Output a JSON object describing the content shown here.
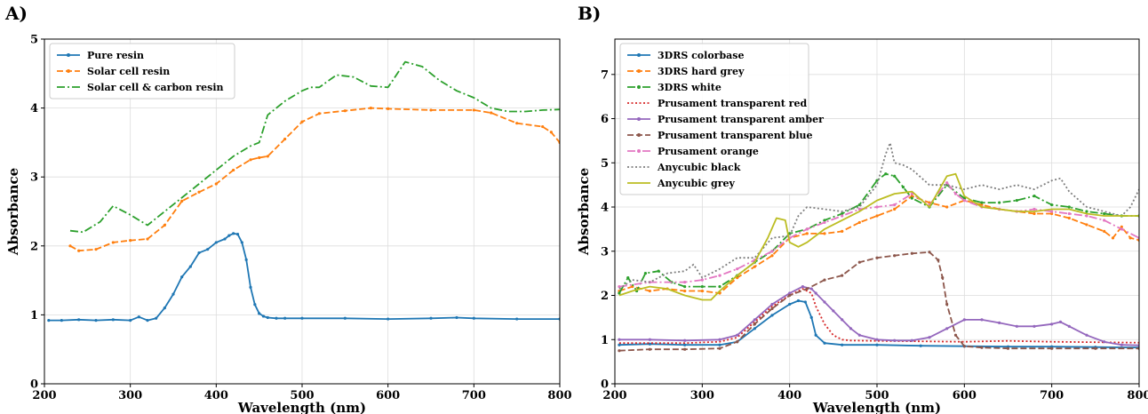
{
  "panels": [
    {
      "label": "A)",
      "type": "line",
      "xlabel": "Wavelength (nm)",
      "ylabel": "Absorbance",
      "xlim": [
        200,
        800
      ],
      "ylim": [
        0,
        5
      ],
      "xticks": [
        200,
        300,
        400,
        500,
        600,
        700,
        800
      ],
      "yticks": [
        0,
        1,
        2,
        3,
        4,
        5
      ],
      "grid": true,
      "legend_position": "top-left",
      "series": [
        {
          "name": "Pure resin",
          "color": "#1f77b4",
          "style": "solid",
          "marker": "dot",
          "x": [
            205,
            220,
            240,
            260,
            280,
            300,
            310,
            320,
            330,
            340,
            350,
            360,
            370,
            380,
            390,
            400,
            410,
            415,
            420,
            425,
            430,
            435,
            440,
            445,
            450,
            455,
            460,
            470,
            480,
            500,
            550,
            600,
            650,
            680,
            700,
            750,
            800
          ],
          "y": [
            0.92,
            0.92,
            0.93,
            0.92,
            0.93,
            0.92,
            0.97,
            0.92,
            0.95,
            1.1,
            1.3,
            1.55,
            1.7,
            1.9,
            1.95,
            2.05,
            2.1,
            2.15,
            2.18,
            2.17,
            2.05,
            1.8,
            1.4,
            1.15,
            1.02,
            0.98,
            0.96,
            0.95,
            0.95,
            0.95,
            0.95,
            0.94,
            0.95,
            0.96,
            0.95,
            0.94,
            0.94
          ]
        },
        {
          "name": "Solar cell resin",
          "color": "#ff7f0e",
          "style": "dashed",
          "marker": "dot",
          "x": [
            230,
            240,
            260,
            280,
            300,
            320,
            340,
            360,
            380,
            400,
            420,
            440,
            450,
            460,
            480,
            500,
            520,
            550,
            580,
            600,
            650,
            700,
            720,
            750,
            780,
            790,
            800
          ],
          "y": [
            2.0,
            1.93,
            1.95,
            2.05,
            2.08,
            2.1,
            2.3,
            2.65,
            2.78,
            2.9,
            3.1,
            3.25,
            3.28,
            3.3,
            3.55,
            3.8,
            3.92,
            3.96,
            4.0,
            3.99,
            3.97,
            3.97,
            3.93,
            3.78,
            3.73,
            3.65,
            3.5
          ]
        },
        {
          "name": "Solar cell & carbon resin",
          "color": "#2ca02c",
          "style": "dashdot",
          "marker": "none",
          "x": [
            230,
            245,
            265,
            280,
            300,
            320,
            340,
            360,
            380,
            400,
            420,
            440,
            450,
            460,
            480,
            500,
            510,
            520,
            540,
            560,
            580,
            600,
            620,
            640,
            660,
            680,
            700,
            720,
            740,
            760,
            780,
            800
          ],
          "y": [
            2.22,
            2.2,
            2.35,
            2.58,
            2.45,
            2.3,
            2.5,
            2.7,
            2.9,
            3.1,
            3.3,
            3.45,
            3.5,
            3.9,
            4.1,
            4.25,
            4.3,
            4.3,
            4.48,
            4.45,
            4.32,
            4.3,
            4.67,
            4.6,
            4.4,
            4.25,
            4.15,
            4.0,
            3.95,
            3.95,
            3.97,
            3.98
          ]
        }
      ]
    },
    {
      "label": "B)",
      "type": "line",
      "xlabel": "Wavelength (nm)",
      "ylabel": "Absorbance",
      "xlim": [
        200,
        800
      ],
      "ylim": [
        0,
        7.8
      ],
      "xticks": [
        200,
        300,
        400,
        500,
        600,
        700,
        800
      ],
      "yticks": [
        0,
        1,
        2,
        3,
        4,
        5,
        6,
        7
      ],
      "grid": true,
      "legend_position": "top-left",
      "series": [
        {
          "name": "3DRS colorbase",
          "color": "#1f77b4",
          "style": "solid",
          "marker": "dot",
          "x": [
            205,
            240,
            280,
            320,
            340,
            360,
            380,
            400,
            410,
            418,
            425,
            430,
            440,
            460,
            500,
            550,
            600,
            650,
            700,
            750,
            800
          ],
          "y": [
            0.88,
            0.9,
            0.88,
            0.88,
            0.95,
            1.25,
            1.55,
            1.8,
            1.88,
            1.85,
            1.5,
            1.1,
            0.92,
            0.88,
            0.88,
            0.86,
            0.85,
            0.84,
            0.84,
            0.83,
            0.82
          ]
        },
        {
          "name": "3DRS hard grey",
          "color": "#ff7f0e",
          "style": "dashed",
          "marker": "dot",
          "x": [
            205,
            220,
            240,
            260,
            280,
            300,
            320,
            340,
            360,
            380,
            400,
            420,
            440,
            460,
            480,
            500,
            520,
            540,
            560,
            580,
            600,
            620,
            640,
            660,
            680,
            700,
            720,
            740,
            760,
            770,
            780,
            790,
            800
          ],
          "y": [
            2.1,
            2.2,
            2.1,
            2.15,
            2.1,
            2.1,
            2.05,
            2.4,
            2.65,
            2.9,
            3.3,
            3.4,
            3.4,
            3.45,
            3.65,
            3.8,
            3.95,
            4.25,
            4.1,
            4.0,
            4.15,
            4.05,
            3.95,
            3.9,
            3.85,
            3.85,
            3.75,
            3.6,
            3.45,
            3.3,
            3.55,
            3.3,
            3.25
          ]
        },
        {
          "name": "3DRS white",
          "color": "#2ca02c",
          "style": "dashdot",
          "marker": "dot",
          "x": [
            205,
            215,
            225,
            235,
            250,
            265,
            280,
            300,
            320,
            340,
            360,
            380,
            400,
            420,
            440,
            460,
            480,
            500,
            510,
            520,
            530,
            540,
            560,
            580,
            600,
            620,
            640,
            660,
            680,
            700,
            720,
            740,
            760,
            780,
            800
          ],
          "y": [
            2.05,
            2.4,
            2.1,
            2.5,
            2.55,
            2.3,
            2.2,
            2.2,
            2.2,
            2.45,
            2.75,
            3.0,
            3.4,
            3.5,
            3.7,
            3.85,
            4.05,
            4.6,
            4.75,
            4.7,
            4.45,
            4.2,
            4.0,
            4.5,
            4.2,
            4.1,
            4.1,
            4.15,
            4.25,
            4.05,
            4.0,
            3.9,
            3.85,
            3.8,
            3.8
          ]
        },
        {
          "name": "Prusament transparent red",
          "color": "#d62728",
          "style": "dotted",
          "marker": "none",
          "x": [
            205,
            240,
            280,
            320,
            340,
            360,
            380,
            400,
            415,
            425,
            430,
            440,
            450,
            460,
            470,
            500,
            550,
            600,
            650,
            700,
            750,
            800
          ],
          "y": [
            0.92,
            0.92,
            0.92,
            0.95,
            1.05,
            1.4,
            1.75,
            2.0,
            2.15,
            2.05,
            1.75,
            1.35,
            1.1,
            1.0,
            0.98,
            0.97,
            0.96,
            0.95,
            0.97,
            0.95,
            0.94,
            0.93
          ]
        },
        {
          "name": "Prusament transparent amber",
          "color": "#9467bd",
          "style": "solid",
          "marker": "dot",
          "x": [
            205,
            240,
            280,
            320,
            340,
            360,
            380,
            400,
            415,
            425,
            430,
            440,
            450,
            460,
            470,
            480,
            500,
            520,
            540,
            560,
            580,
            600,
            620,
            640,
            660,
            680,
            700,
            710,
            720,
            740,
            760,
            780,
            800
          ],
          "y": [
            1.0,
            1.0,
            0.98,
            1.0,
            1.1,
            1.45,
            1.8,
            2.05,
            2.2,
            2.15,
            2.05,
            1.85,
            1.65,
            1.45,
            1.25,
            1.1,
            1.0,
            0.98,
            0.98,
            1.05,
            1.25,
            1.45,
            1.45,
            1.38,
            1.3,
            1.3,
            1.35,
            1.4,
            1.3,
            1.1,
            0.95,
            0.88,
            0.87
          ]
        },
        {
          "name": "Prusament transparent blue",
          "color": "#8c564b",
          "style": "dashed",
          "marker": "dot",
          "x": [
            205,
            240,
            280,
            320,
            340,
            360,
            380,
            400,
            420,
            440,
            460,
            480,
            500,
            520,
            540,
            560,
            570,
            575,
            580,
            590,
            600,
            620,
            650,
            700,
            750,
            800
          ],
          "y": [
            0.75,
            0.78,
            0.78,
            0.8,
            0.95,
            1.35,
            1.7,
            2.0,
            2.15,
            2.35,
            2.45,
            2.75,
            2.85,
            2.9,
            2.95,
            2.98,
            2.8,
            2.4,
            1.8,
            1.1,
            0.85,
            0.82,
            0.8,
            0.8,
            0.8,
            0.8
          ]
        },
        {
          "name": "Prusament orange",
          "color": "#e377c2",
          "style": "dashdot",
          "marker": "dot",
          "x": [
            205,
            240,
            280,
            300,
            320,
            340,
            360,
            380,
            400,
            420,
            440,
            460,
            480,
            500,
            520,
            540,
            560,
            580,
            590,
            600,
            620,
            640,
            660,
            680,
            700,
            720,
            740,
            760,
            780,
            800
          ],
          "y": [
            2.2,
            2.3,
            2.3,
            2.35,
            2.45,
            2.6,
            2.8,
            3.0,
            3.3,
            3.5,
            3.65,
            3.8,
            3.95,
            4.0,
            4.05,
            4.3,
            4.05,
            4.55,
            4.3,
            4.15,
            4.0,
            3.95,
            3.9,
            3.95,
            3.9,
            3.85,
            3.8,
            3.7,
            3.5,
            3.3
          ]
        },
        {
          "name": "Anycubic black",
          "color": "#7f7f7f",
          "style": "dotted",
          "marker": "none",
          "x": [
            205,
            220,
            240,
            260,
            280,
            290,
            300,
            320,
            340,
            360,
            380,
            400,
            410,
            420,
            440,
            460,
            480,
            500,
            510,
            515,
            520,
            530,
            540,
            560,
            580,
            600,
            620,
            640,
            660,
            680,
            700,
            710,
            720,
            740,
            760,
            780,
            790,
            800
          ],
          "y": [
            2.15,
            2.35,
            2.3,
            2.5,
            2.55,
            2.7,
            2.4,
            2.6,
            2.85,
            2.85,
            3.3,
            3.35,
            3.8,
            4.0,
            3.95,
            3.9,
            4.0,
            4.5,
            5.2,
            5.45,
            5.0,
            4.95,
            4.85,
            4.5,
            4.5,
            4.4,
            4.5,
            4.4,
            4.5,
            4.4,
            4.6,
            4.65,
            4.35,
            4.0,
            3.9,
            3.8,
            4.0,
            4.4
          ]
        },
        {
          "name": "Anycubic grey",
          "color": "#bcbd22",
          "style": "solid",
          "marker": "none",
          "x": [
            205,
            220,
            240,
            260,
            280,
            300,
            310,
            320,
            340,
            360,
            375,
            385,
            395,
            400,
            405,
            410,
            420,
            440,
            460,
            480,
            500,
            520,
            540,
            560,
            580,
            590,
            600,
            620,
            640,
            660,
            680,
            700,
            720,
            740,
            760,
            780,
            800
          ],
          "y": [
            2.0,
            2.1,
            2.2,
            2.15,
            2.0,
            1.9,
            1.9,
            2.1,
            2.45,
            2.75,
            3.3,
            3.75,
            3.7,
            3.2,
            3.15,
            3.1,
            3.2,
            3.5,
            3.7,
            3.9,
            4.15,
            4.3,
            4.35,
            4.0,
            4.7,
            4.75,
            4.25,
            4.0,
            3.95,
            3.9,
            3.9,
            3.95,
            3.95,
            3.85,
            3.8,
            3.8,
            3.8
          ]
        }
      ]
    }
  ]
}
